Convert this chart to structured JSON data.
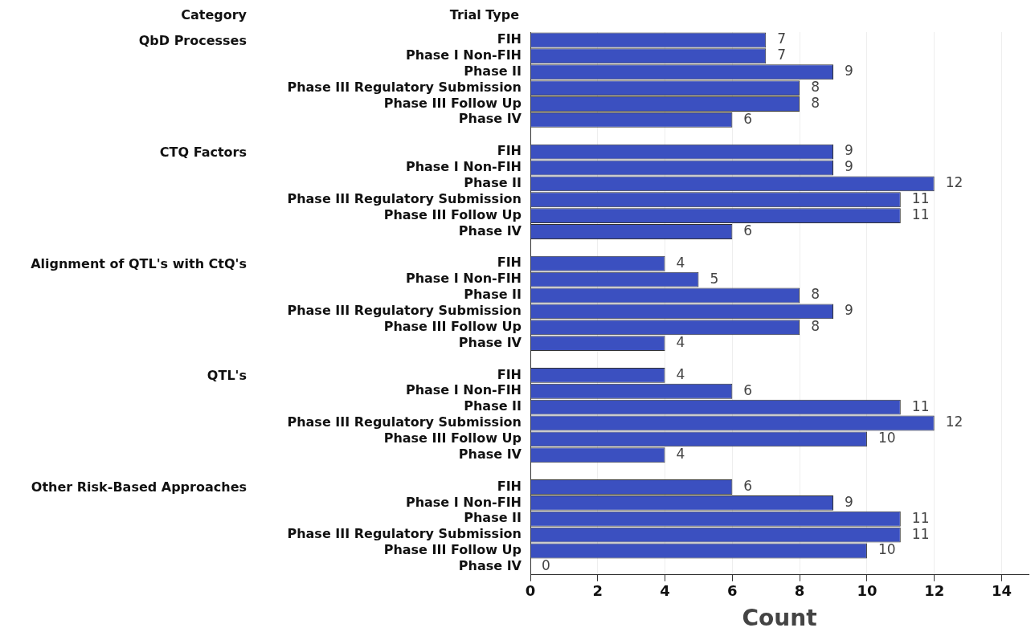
{
  "chart_data": {
    "type": "bar",
    "orientation": "horizontal",
    "ylabel": "Trial Type",
    "xlabel": "Count",
    "annotations": [
      "Category",
      "QbD Processes",
      "CTQ Factors",
      "Alignment of QTL's with CtQ's",
      "QTL's",
      "Other Risk-Based Approaches"
    ],
    "categories": [
      "FIH",
      "Phase I Non-FIH",
      "Phase II",
      "Phase III Regulatory Submission",
      "Phase III Follow Up",
      "Phase IV",
      null,
      "FIH",
      "Phase I Non-FIH",
      "Phase II",
      "Phase III Regulatory Submission",
      "Phase III Follow Up",
      "Phase IV",
      null,
      "FIH",
      "Phase I Non-FIH",
      "Phase II",
      "Phase III Regulatory Submission",
      "Phase III Follow Up",
      "Phase IV",
      null,
      "FIH",
      "Phase I Non-FIH",
      "Phase II",
      "Phase III Regulatory Submission",
      "Phase III Follow Up",
      "Phase IV",
      null,
      "FIH",
      "Phase I Non-FIH",
      "Phase II",
      "Phase III Regulatory Submission",
      "Phase III Follow Up",
      "Phase IV"
    ],
    "values": [
      7,
      7,
      9,
      8,
      8,
      6,
      null,
      9,
      9,
      12,
      11,
      11,
      6,
      null,
      4,
      5,
      8,
      9,
      8,
      4,
      null,
      4,
      6,
      11,
      12,
      10,
      4,
      null,
      6,
      9,
      11,
      11,
      10,
      0
    ],
    "color": "#3b50c0",
    "xlim": [
      0,
      14.8
    ],
    "xticks": [
      0,
      2,
      4,
      6,
      8,
      10,
      12,
      14
    ],
    "grid": "x",
    "data_labels": true,
    "legend": false
  }
}
